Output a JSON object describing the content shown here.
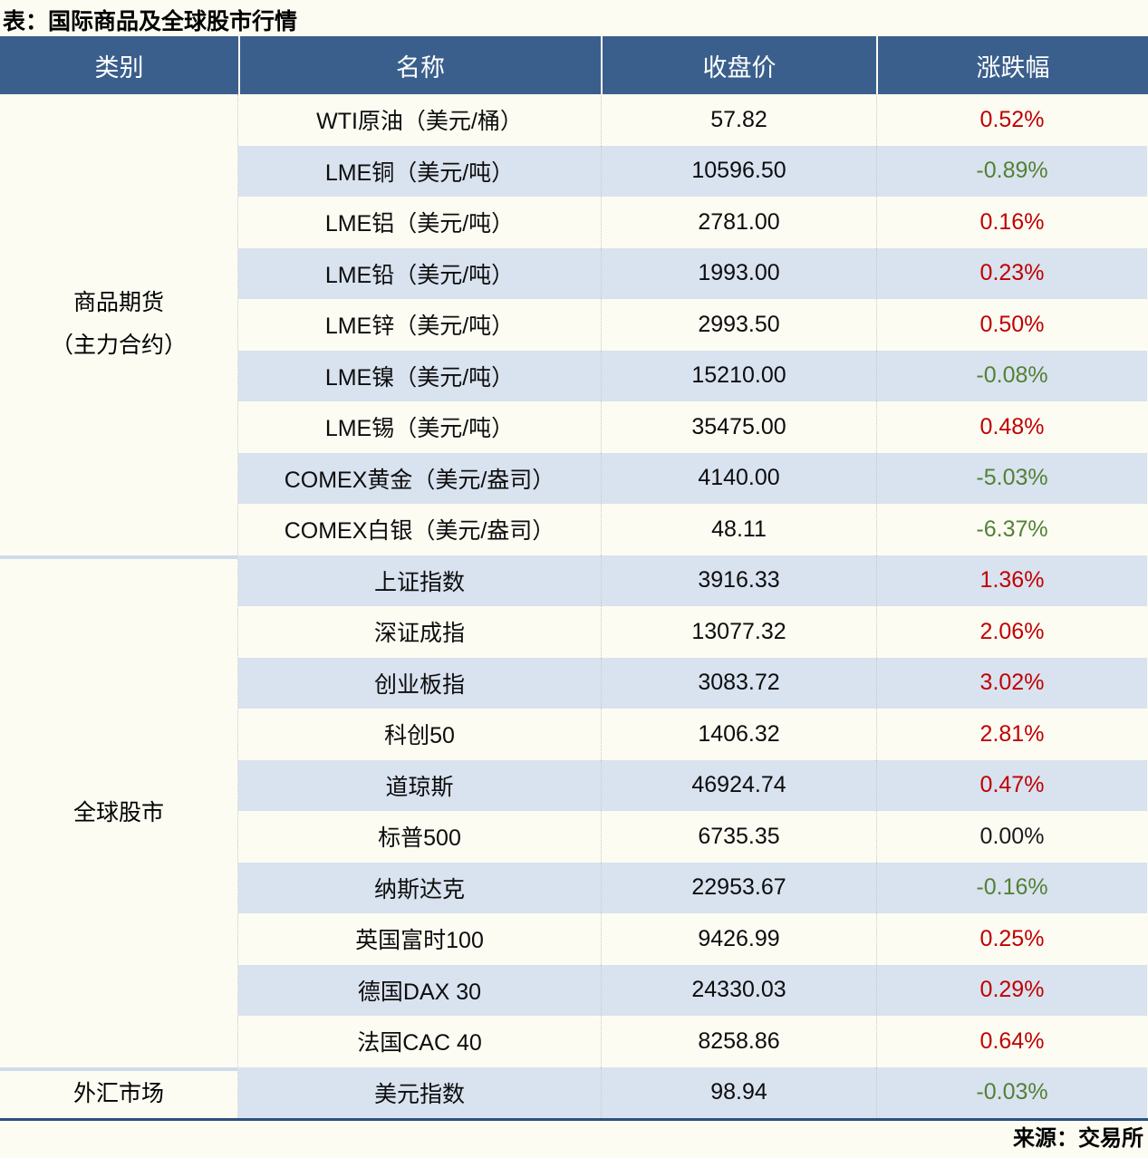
{
  "title": "表：国际商品及全球股市行情",
  "source": "来源：交易所",
  "colors": {
    "header_bg": "#3A5F8C",
    "row_alt_bg": "#D9E2EF",
    "up_red": "#C00000",
    "down_green": "#538135",
    "flat_black": "#1A1A1A",
    "page_bg": "#FCFCF3",
    "bottom_border": "#2B517E",
    "section_divider": "#CFDBEA"
  },
  "chart_data": {
    "type": "table",
    "title": "表：国际商品及全球股市行情",
    "columns": [
      "类别",
      "名称",
      "收盘价",
      "涨跌幅"
    ],
    "sections": [
      {
        "category": "商品期货（主力合约）",
        "category_lines": [
          "商品期货",
          "（主力合约）"
        ],
        "rows": [
          {
            "name": "WTI原油（美元/桶）",
            "close": "57.82",
            "change": "0.52%",
            "direction": "up"
          },
          {
            "name": "LME铜（美元/吨）",
            "close": "10596.50",
            "change": "-0.89%",
            "direction": "down"
          },
          {
            "name": "LME铝（美元/吨）",
            "close": "2781.00",
            "change": "0.16%",
            "direction": "up"
          },
          {
            "name": "LME铅（美元/吨）",
            "close": "1993.00",
            "change": "0.23%",
            "direction": "up"
          },
          {
            "name": "LME锌（美元/吨）",
            "close": "2993.50",
            "change": "0.50%",
            "direction": "up"
          },
          {
            "name": "LME镍（美元/吨）",
            "close": "15210.00",
            "change": "-0.08%",
            "direction": "down"
          },
          {
            "name": "LME锡（美元/吨）",
            "close": "35475.00",
            "change": "0.48%",
            "direction": "up"
          },
          {
            "name": "COMEX黄金（美元/盎司）",
            "close": "4140.00",
            "change": "-5.03%",
            "direction": "down"
          },
          {
            "name": "COMEX白银（美元/盎司）",
            "close": "48.11",
            "change": "-6.37%",
            "direction": "down"
          }
        ]
      },
      {
        "category": "全球股市",
        "category_lines": [
          "全球股市"
        ],
        "rows": [
          {
            "name": "上证指数",
            "close": "3916.33",
            "change": "1.36%",
            "direction": "up"
          },
          {
            "name": "深证成指",
            "close": "13077.32",
            "change": "2.06%",
            "direction": "up"
          },
          {
            "name": "创业板指",
            "close": "3083.72",
            "change": "3.02%",
            "direction": "up"
          },
          {
            "name": "科创50",
            "close": "1406.32",
            "change": "2.81%",
            "direction": "up"
          },
          {
            "name": "道琼斯",
            "close": "46924.74",
            "change": "0.47%",
            "direction": "up"
          },
          {
            "name": "标普500",
            "close": "6735.35",
            "change": "0.00%",
            "direction": "flat"
          },
          {
            "name": "纳斯达克",
            "close": "22953.67",
            "change": "-0.16%",
            "direction": "down"
          },
          {
            "name": "英国富时100",
            "close": "9426.99",
            "change": "0.25%",
            "direction": "up"
          },
          {
            "name": "德国DAX 30",
            "close": "24330.03",
            "change": "0.29%",
            "direction": "up"
          },
          {
            "name": "法国CAC 40",
            "close": "8258.86",
            "change": "0.64%",
            "direction": "up"
          }
        ]
      },
      {
        "category": "外汇市场",
        "category_lines": [
          "外汇市场"
        ],
        "rows": [
          {
            "name": "美元指数",
            "close": "98.94",
            "change": "-0.03%",
            "direction": "down"
          }
        ]
      }
    ],
    "source": "来源：交易所"
  }
}
